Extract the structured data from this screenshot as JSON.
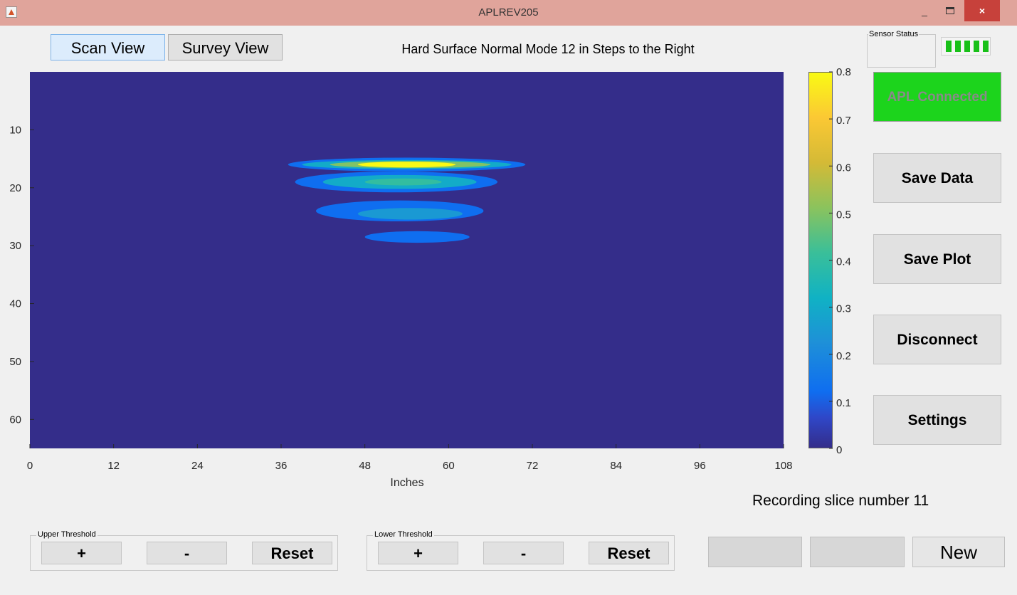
{
  "window": {
    "title": "APLREV205",
    "minimize_glyph": "_",
    "close_glyph": "×"
  },
  "tabs": [
    {
      "label": "Scan View",
      "selected": true
    },
    {
      "label": "Survey View",
      "selected": false
    }
  ],
  "plot_title": "Hard Surface Normal Mode 12 in Steps to the Right",
  "sensor_status": {
    "label": "Sensor Status",
    "signal_bars": 5,
    "signal_color": "#18c018"
  },
  "connection": {
    "label": "APL Connected",
    "color": "#1cd41c"
  },
  "side_buttons": {
    "save_data": "Save Data",
    "save_plot": "Save Plot",
    "disconnect": "Disconnect",
    "settings": "Settings"
  },
  "recording_status": "Recording slice number 11",
  "upper_threshold": {
    "title": "Upper Threshold",
    "plus": "+",
    "minus": "-",
    "reset": "Reset"
  },
  "lower_threshold": {
    "title": "Lower Threshold",
    "plus": "+",
    "minus": "-",
    "reset": "Reset"
  },
  "bottom_buttons": {
    "blank1": "",
    "blank2": "",
    "new": "New"
  },
  "chart_data": {
    "type": "heatmap",
    "title": "Hard Surface Normal Mode 12 in Steps to the Right",
    "xlabel": "Inches",
    "ylabel": "",
    "xlim": [
      0,
      108
    ],
    "ylim": [
      0,
      65
    ],
    "y_reversed": true,
    "x_ticks": [
      0,
      12,
      24,
      36,
      48,
      60,
      72,
      84,
      96,
      108
    ],
    "y_ticks": [
      10,
      20,
      30,
      40,
      50,
      60
    ],
    "colorbar": {
      "min": 0,
      "max": 0.8,
      "ticks": [
        0,
        0.1,
        0.2,
        0.3,
        0.4,
        0.5,
        0.6,
        0.7,
        0.8
      ],
      "colormap": "parula"
    },
    "background_value": 0,
    "regions": [
      {
        "x_min": 37,
        "x_max": 71,
        "y_center": 16,
        "y_half": 1.2,
        "value": 0.12
      },
      {
        "x_min": 39,
        "x_max": 69,
        "y_center": 16,
        "y_half": 0.8,
        "value": 0.3
      },
      {
        "x_min": 43,
        "x_max": 66,
        "y_center": 16,
        "y_half": 0.6,
        "value": 0.5
      },
      {
        "x_min": 47,
        "x_max": 61,
        "y_center": 16,
        "y_half": 0.4,
        "value": 0.8
      },
      {
        "x_min": 38,
        "x_max": 67,
        "y_center": 19,
        "y_half": 1.8,
        "value": 0.12
      },
      {
        "x_min": 42,
        "x_max": 64,
        "y_center": 19,
        "y_half": 1.2,
        "value": 0.3
      },
      {
        "x_min": 48,
        "x_max": 59,
        "y_center": 19,
        "y_half": 0.6,
        "value": 0.4
      },
      {
        "x_min": 41,
        "x_max": 65,
        "y_center": 24,
        "y_half": 1.8,
        "value": 0.12
      },
      {
        "x_min": 47,
        "x_max": 62,
        "y_center": 24.5,
        "y_half": 1.0,
        "value": 0.25
      },
      {
        "x_min": 48,
        "x_max": 63,
        "y_center": 28.5,
        "y_half": 1.0,
        "value": 0.12
      }
    ]
  }
}
